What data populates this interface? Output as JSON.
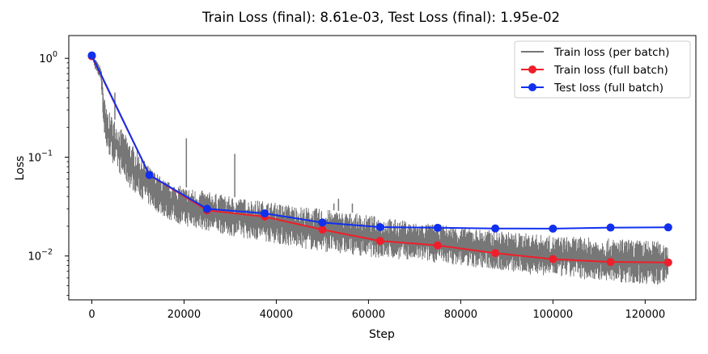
{
  "chart_data": {
    "type": "line",
    "title": "Train Loss (final): 8.61e-03, Test Loss (final): 1.95e-02",
    "xlabel": "Step",
    "ylabel": "Loss",
    "yscale": "log",
    "xlim": [
      -5000,
      131000
    ],
    "ylim": [
      0.0036,
      1.7
    ],
    "grid": false,
    "legend_position": "top-right",
    "x_ticks": [
      0,
      20000,
      40000,
      60000,
      80000,
      100000,
      120000
    ],
    "x_tick_labels": [
      "0",
      "20000",
      "40000",
      "60000",
      "80000",
      "100000",
      "120000"
    ],
    "y_ticks": [
      1,
      0.1,
      0.01
    ],
    "y_tick_labels": [
      "10",
      "10",
      "10"
    ],
    "y_tick_exponents": [
      "0",
      "−1",
      "−2"
    ],
    "series": [
      {
        "name": "Train loss (per batch)",
        "color": "#777777",
        "style": "band",
        "x": [
          0,
          1000,
          2000,
          2500,
          3000,
          5000,
          8000,
          12500,
          16000,
          20000,
          25000,
          30000,
          37500,
          45000,
          50000,
          55000,
          62500,
          70000,
          75000,
          80000,
          87500,
          95000,
          100000,
          107000,
          112500,
          120000,
          125000
        ],
        "upper": [
          1.1,
          0.95,
          0.82,
          0.55,
          0.32,
          0.24,
          0.15,
          0.08,
          0.058,
          0.05,
          0.045,
          0.04,
          0.036,
          0.032,
          0.03,
          0.028,
          0.025,
          0.022,
          0.021,
          0.02,
          0.018,
          0.017,
          0.016,
          0.0155,
          0.015,
          0.0145,
          0.014
        ],
        "lower": [
          1.0,
          0.7,
          0.6,
          0.2,
          0.12,
          0.08,
          0.05,
          0.032,
          0.024,
          0.02,
          0.018,
          0.016,
          0.014,
          0.012,
          0.011,
          0.0105,
          0.0095,
          0.009,
          0.0085,
          0.008,
          0.0072,
          0.0065,
          0.0062,
          0.0058,
          0.0055,
          0.0052,
          0.005
        ],
        "spikes": [
          [
            5000,
            0.45
          ],
          [
            20500,
            0.155
          ],
          [
            31000,
            0.108
          ],
          [
            52500,
            0.034
          ],
          [
            53500,
            0.038
          ],
          [
            56500,
            0.034
          ]
        ]
      },
      {
        "name": "Train loss (full batch)",
        "color": "#ee1f2a",
        "x": [
          0,
          12500,
          25000,
          37500,
          50000,
          62500,
          75000,
          87500,
          100000,
          112500,
          125000
        ],
        "y": [
          1.05,
          0.066,
          0.029,
          0.025,
          0.0185,
          0.0142,
          0.0128,
          0.0107,
          0.0093,
          0.0087,
          0.0086
        ]
      },
      {
        "name": "Test loss (full batch)",
        "color": "#1030ee",
        "x": [
          0,
          12500,
          25000,
          37500,
          50000,
          62500,
          75000,
          87500,
          100000,
          112500,
          125000
        ],
        "y": [
          1.07,
          0.066,
          0.03,
          0.027,
          0.0218,
          0.0196,
          0.0193,
          0.019,
          0.0189,
          0.0194,
          0.0195
        ]
      }
    ]
  }
}
